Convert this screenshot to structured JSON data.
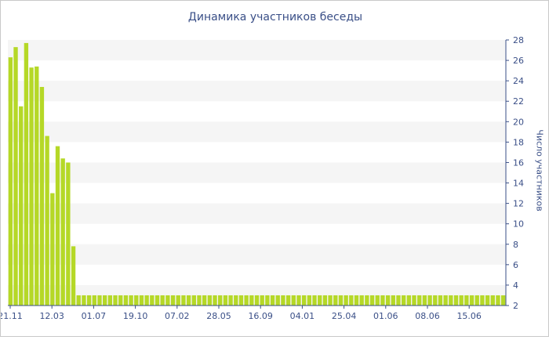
{
  "chart_data": {
    "type": "bar",
    "title": "Динамика участников беседы",
    "ylabel": "Число участников",
    "xlabel": "",
    "ylim": [
      2,
      28
    ],
    "ytick_step": 2,
    "y_axis_side": "right",
    "grid": "alternating horizontal bands",
    "bar_color": "#b5d827",
    "band_color": "#f5f5f5",
    "axis_color": "#3a4f87",
    "x_tick_labels": [
      "21.11",
      "12.03",
      "01.07",
      "19.10",
      "07.02",
      "28.05",
      "16.09",
      "04.01",
      "25.04",
      "01.06",
      "08.06",
      "15.06"
    ],
    "values": [
      26.3,
      27.3,
      21.5,
      27.7,
      25.3,
      25.4,
      23.4,
      18.6,
      13.0,
      17.6,
      16.4,
      16.0,
      7.8,
      3,
      3,
      3,
      3,
      3,
      3,
      3,
      3,
      3,
      3,
      3,
      3,
      3,
      3,
      3,
      3,
      3,
      3,
      3,
      3,
      3,
      3,
      3,
      3,
      3,
      3,
      3,
      3,
      3,
      3,
      3,
      3,
      3,
      3,
      3,
      3,
      3,
      3,
      3,
      3,
      3,
      3,
      3,
      3,
      3,
      3,
      3,
      3,
      3,
      3,
      3,
      3,
      3,
      3,
      3,
      3,
      3,
      3,
      3,
      3,
      3,
      3,
      3,
      3,
      3,
      3,
      3,
      3,
      3,
      3,
      3,
      3,
      3,
      3,
      3,
      3,
      3,
      3,
      3,
      3,
      3,
      3
    ]
  }
}
